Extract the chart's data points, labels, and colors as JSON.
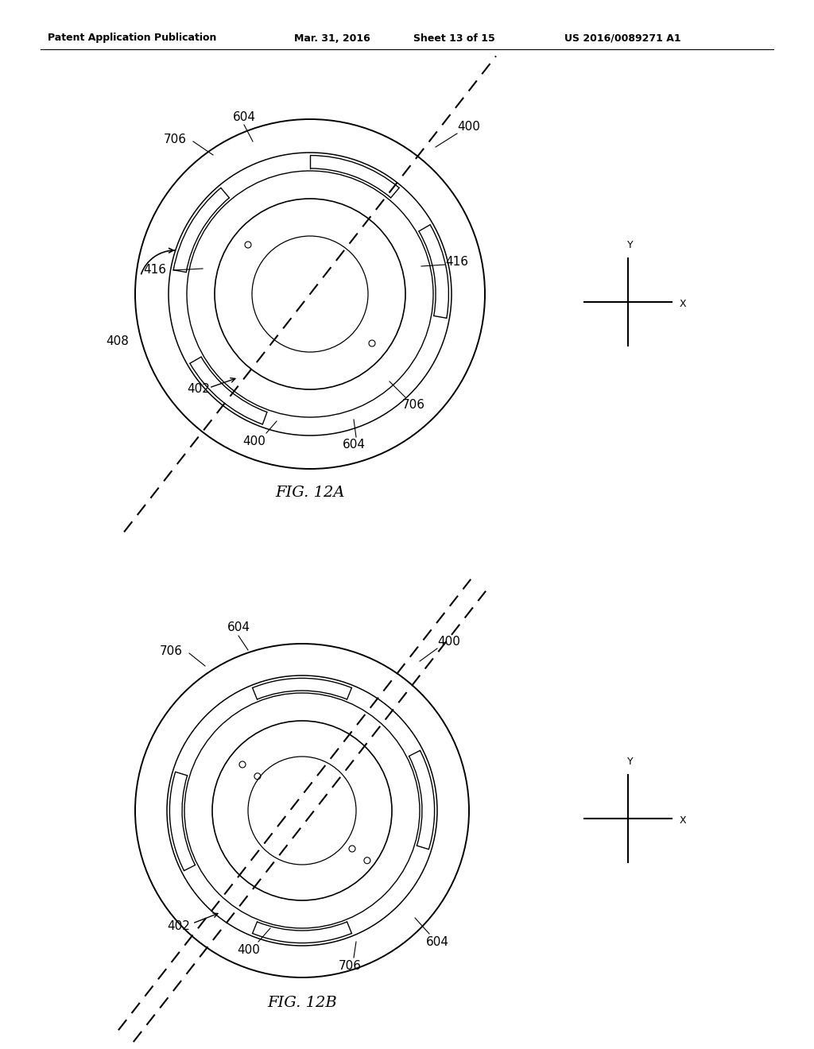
{
  "title_line1": "Patent Application Publication",
  "title_line2": "Mar. 31, 2016",
  "title_line3": "Sheet 13 of 15",
  "title_line4": "US 2016/0089271 A1",
  "fig12a_label": "FIG. 12A",
  "fig12b_label": "FIG. 12B",
  "background_color": "#ffffff",
  "line_color": "#000000",
  "label_fontsize": 10,
  "title_fontsize": 9,
  "fig_label_fontsize": 13
}
